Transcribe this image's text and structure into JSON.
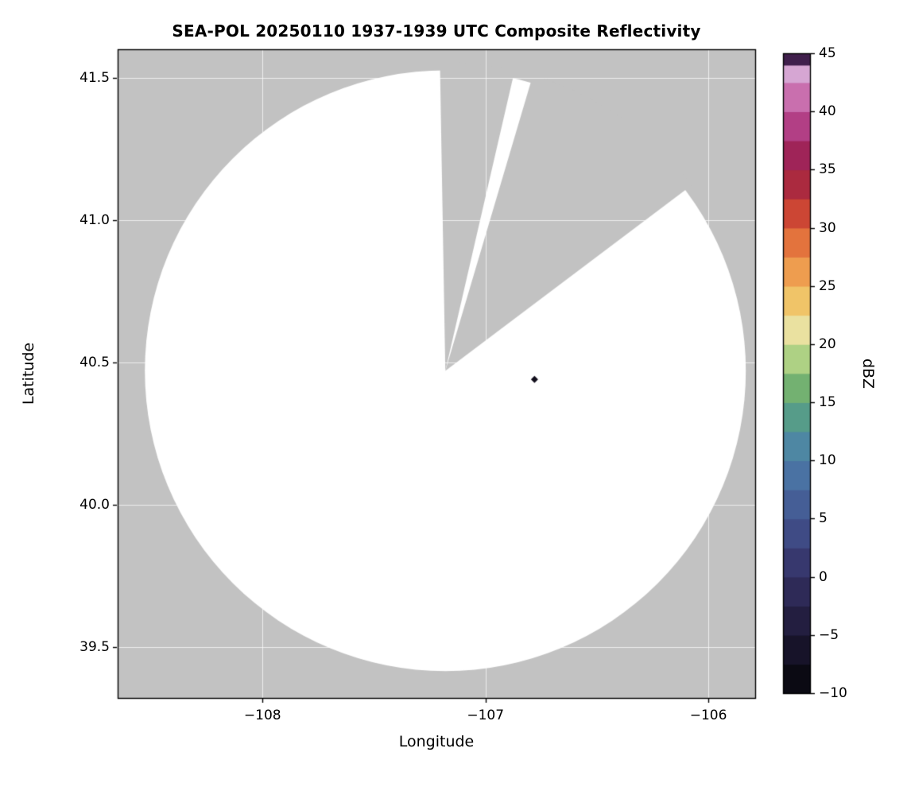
{
  "page": {
    "background": "#ffffff"
  },
  "chart_data": {
    "type": "heatmap",
    "variant": "radar-composite-reflectivity-map",
    "title": "SEA-POL 20250110 1937-1939 UTC Composite Reflectivity",
    "xlabel": "Longitude",
    "ylabel": "Latitude",
    "xlim": [
      -108.65,
      -105.79
    ],
    "ylim": [
      39.32,
      41.6
    ],
    "xticks": [
      {
        "value": -108,
        "label": "−108"
      },
      {
        "value": -107,
        "label": "−107"
      },
      {
        "value": -106,
        "label": "−106"
      }
    ],
    "yticks": [
      {
        "value": 41.5,
        "label": "41.5"
      },
      {
        "value": 41.0,
        "label": "41.0"
      },
      {
        "value": 40.5,
        "label": "40.5"
      },
      {
        "value": 40.0,
        "label": "40.0"
      },
      {
        "value": 39.5,
        "label": "39.5"
      }
    ],
    "grid": {
      "visible": true,
      "color": "rgba(255,255,255,0.7)"
    },
    "no_data_color": "#c2c2c2",
    "frame_color": "#000000",
    "coverage": {
      "description": "white circular radar coverage disk with gray blocked sectors",
      "center": {
        "lon": -107.18,
        "lat": 40.47
      },
      "radius_deg_lon": 1.348,
      "radius_deg_lat": 1.056,
      "fill": "#ffffff",
      "blocked_sectors_deg_from_north_cw": [
        {
          "from": -1,
          "to": 13
        },
        {
          "from": 16.5,
          "to": 53
        }
      ]
    },
    "echoes": [
      {
        "lon": -106.78,
        "lat": 40.44,
        "color": "#120e1c",
        "shape": "diamond"
      }
    ],
    "colorbar": {
      "label": "dBZ",
      "min": -10,
      "max": 45,
      "ticks": [
        {
          "value": 45,
          "label": "45"
        },
        {
          "value": 40,
          "label": "40"
        },
        {
          "value": 35,
          "label": "35"
        },
        {
          "value": 30,
          "label": "30"
        },
        {
          "value": 25,
          "label": "25"
        },
        {
          "value": 20,
          "label": "20"
        },
        {
          "value": 15,
          "label": "15"
        },
        {
          "value": 10,
          "label": "10"
        },
        {
          "value": 5,
          "label": "5"
        },
        {
          "value": 0,
          "label": "0"
        },
        {
          "value": -5,
          "label": "−5"
        },
        {
          "value": -10,
          "label": "−10"
        }
      ],
      "bands": [
        {
          "from": -10,
          "to": -7.5,
          "color": "#0b0a13"
        },
        {
          "from": -7.5,
          "to": -5,
          "color": "#171329"
        },
        {
          "from": -5,
          "to": -2.5,
          "color": "#231e40"
        },
        {
          "from": -2.5,
          "to": 0,
          "color": "#2e2a57"
        },
        {
          "from": 0,
          "to": 2.5,
          "color": "#37386e"
        },
        {
          "from": 2.5,
          "to": 5,
          "color": "#3f4b85"
        },
        {
          "from": 5,
          "to": 7.5,
          "color": "#455e96"
        },
        {
          "from": 7.5,
          "to": 10,
          "color": "#4a72a3"
        },
        {
          "from": 10,
          "to": 12.5,
          "color": "#4e87a3"
        },
        {
          "from": 12.5,
          "to": 15,
          "color": "#569c89"
        },
        {
          "from": 15,
          "to": 17.5,
          "color": "#73b171"
        },
        {
          "from": 17.5,
          "to": 20,
          "color": "#aed184"
        },
        {
          "from": 20,
          "to": 22.5,
          "color": "#eae1a0"
        },
        {
          "from": 22.5,
          "to": 25,
          "color": "#f0c468"
        },
        {
          "from": 25,
          "to": 27.5,
          "color": "#ee9d4f"
        },
        {
          "from": 27.5,
          "to": 30,
          "color": "#e3733d"
        },
        {
          "from": 30,
          "to": 32.5,
          "color": "#cc4634"
        },
        {
          "from": 32.5,
          "to": 35,
          "color": "#ab2a3f"
        },
        {
          "from": 35,
          "to": 37.5,
          "color": "#9f2458"
        },
        {
          "from": 37.5,
          "to": 40,
          "color": "#b23f85"
        },
        {
          "from": 40,
          "to": 42.5,
          "color": "#c96fae"
        },
        {
          "from": 42.5,
          "to": 44,
          "color": "#d6a6d3"
        },
        {
          "from": 44,
          "to": 45,
          "color": "#401f4c"
        }
      ]
    }
  }
}
